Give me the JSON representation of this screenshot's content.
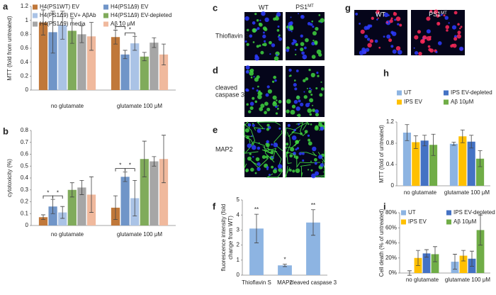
{
  "panel_letters": [
    "a",
    "b",
    "c",
    "d",
    "e",
    "f",
    "g",
    "h",
    "i"
  ],
  "micrographs": {
    "column_labels": [
      "WT",
      "PS1"
    ],
    "column_label_sup": "MT",
    "row_labels": [
      [
        "Thioflavin S"
      ],
      [
        "cleaved",
        "caspase 3"
      ],
      [
        "MAP2"
      ]
    ]
  },
  "chart_data": [
    {
      "type": "bar",
      "ylabel": "MTT (fold from untreated)",
      "categories": [
        "no glutamate",
        "glutamate 100 μM"
      ],
      "ylim": [
        0,
        1.2
      ],
      "yticks": [
        0,
        0.2,
        0.4,
        0.6,
        0.8,
        1,
        1.2
      ],
      "series": [
        {
          "name": "H4(PS1WT) EV",
          "color": "#c0783a",
          "values": [
            0.97,
            0.76
          ],
          "errors": [
            0.18,
            0.1
          ]
        },
        {
          "name": "H4(PS1Δ9) EV",
          "color": "#7095c8",
          "values": [
            0.83,
            0.51
          ],
          "errors": [
            0.3,
            0.06
          ]
        },
        {
          "name": "H4(PS1Δ9) EV+ AβAb",
          "color": "#aac3e6",
          "values": [
            0.93,
            0.67
          ],
          "errors": [
            0.2,
            0.1
          ]
        },
        {
          "name": "H4(PS1Δ9) EV-depleted",
          "color": "#80ab5b",
          "values": [
            0.85,
            0.48
          ],
          "errors": [
            0.18,
            0.06
          ]
        },
        {
          "name": "H4(PS1Δ9) media",
          "color": "#a6a6a6",
          "values": [
            0.8,
            0.68
          ],
          "errors": [
            0.12,
            0.07
          ]
        },
        {
          "name": "Aβ 10 μM",
          "color": "#f0b99d",
          "values": [
            0.77,
            0.51
          ],
          "errors": [
            0.2,
            0.15
          ]
        }
      ],
      "annotations": [
        {
          "text": "*",
          "category": 1,
          "from": 0,
          "to": 1
        },
        {
          "text": "*",
          "category": 1,
          "from": 1,
          "to": 2
        }
      ]
    },
    {
      "type": "bar",
      "ylabel": "cytotoxicity (%)",
      "categories": [
        "no glutamate",
        "glutamate 100 μM"
      ],
      "ylim": [
        0,
        0.8
      ],
      "yticks": [
        0,
        0.1,
        0.2,
        0.3,
        0.4,
        0.5,
        0.6,
        0.7,
        0.8
      ],
      "series": [
        {
          "color": "#c0783a",
          "values": [
            0.07,
            0.15
          ],
          "errors": [
            0.02,
            0.1
          ]
        },
        {
          "color": "#7095c8",
          "values": [
            0.16,
            0.41
          ],
          "errors": [
            0.06,
            0.04
          ]
        },
        {
          "color": "#aac3e6",
          "values": [
            0.11,
            0.23
          ],
          "errors": [
            0.05,
            0.15
          ]
        },
        {
          "color": "#80ab5b",
          "values": [
            0.3,
            0.56
          ],
          "errors": [
            0.06,
            0.15
          ]
        },
        {
          "color": "#a6a6a6",
          "values": [
            0.32,
            0.54
          ],
          "errors": [
            0.06,
            0.04
          ]
        },
        {
          "color": "#f0b99d",
          "values": [
            0.26,
            0.56
          ],
          "errors": [
            0.15,
            0.2
          ]
        }
      ],
      "annotations": [
        {
          "text": "*",
          "category": 0,
          "from": 0,
          "to": 1
        },
        {
          "text": "*",
          "category": 0,
          "from": 1,
          "to": 2
        },
        {
          "text": "*",
          "category": 1,
          "from": 0,
          "to": 1
        },
        {
          "text": "*",
          "category": 1,
          "from": 1,
          "to": 2
        }
      ]
    },
    {
      "type": "bar",
      "ylabel": [
        "fluorescence intensity (fold",
        "change from WT)"
      ],
      "categories": [
        "Thioflavin S",
        "MAP2",
        "cleaved caspase 3"
      ],
      "ylim": [
        0,
        5
      ],
      "yticks": [
        0,
        1,
        2,
        3,
        4,
        5
      ],
      "series": [
        {
          "color": "#8db4e2",
          "values": [
            3.1,
            0.65,
            3.5
          ],
          "errors": [
            0.95,
            0.08,
            0.85
          ]
        }
      ],
      "value_annotations": [
        "**",
        "*",
        "**"
      ]
    },
    {
      "type": "bar",
      "ylabel": "MTT (fold of untreated)",
      "categories": [
        "no glutamate",
        "glutamate 100 μM"
      ],
      "ylim": [
        0,
        1.2
      ],
      "yticks": [
        0,
        0.4,
        0.8,
        1.2
      ],
      "series": [
        {
          "name": "UT",
          "color": "#8db4e2",
          "values": [
            1.0,
            0.79
          ],
          "errors": [
            0.15,
            0.03
          ]
        },
        {
          "name": "IPS EV",
          "color": "#ffc000",
          "values": [
            0.82,
            0.93
          ],
          "errors": [
            0.12,
            0.12
          ]
        },
        {
          "name": "IPS EV-depleted",
          "color": "#4472c4",
          "values": [
            0.85,
            0.83
          ],
          "errors": [
            0.1,
            0.12
          ]
        },
        {
          "name": "Aβ 10μM",
          "color": "#70ad47",
          "values": [
            0.77,
            0.51
          ],
          "errors": [
            0.2,
            0.15
          ]
        }
      ]
    },
    {
      "type": "bar",
      "ylabel": "Cell death (% of untreated)",
      "categories": [
        "no glutamate",
        "glutamate 100 μM"
      ],
      "ylim": [
        0,
        80
      ],
      "yticks": [
        {
          "value": 0,
          "label": "0%"
        },
        {
          "value": 20,
          "label": "20%"
        },
        {
          "value": 40,
          "label": "40%"
        },
        {
          "value": 60,
          "label": "60%"
        },
        {
          "value": 80,
          "label": "80%"
        }
      ],
      "series": [
        {
          "name": "UT",
          "color": "#8db4e2",
          "values": [
            0,
            15
          ],
          "errors": [
            3,
            10
          ]
        },
        {
          "name": "IPS EV",
          "color": "#ffc000",
          "values": [
            20,
            23
          ],
          "errors": [
            10,
            7
          ]
        },
        {
          "name": "IPS EV-depleted",
          "color": "#4472c4",
          "values": [
            26,
            19
          ],
          "errors": [
            5,
            10
          ]
        },
        {
          "name": "Aβ 10μM",
          "color": "#70ad47",
          "values": [
            25,
            57
          ],
          "errors": [
            10,
            20
          ]
        }
      ]
    }
  ]
}
